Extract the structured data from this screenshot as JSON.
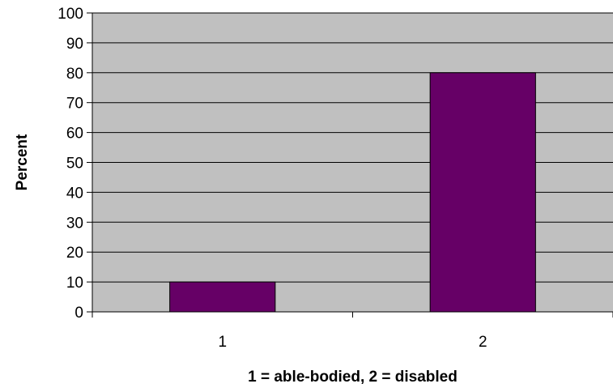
{
  "chart_data": {
    "type": "bar",
    "categories": [
      "1",
      "2"
    ],
    "values": [
      10,
      80
    ],
    "xlabel": "1 = able-bodied, 2 = disabled",
    "ylabel": "Percent",
    "ylim": [
      0,
      100
    ],
    "yticks": [
      "0",
      "10",
      "20",
      "30",
      "40",
      "50",
      "60",
      "70",
      "80",
      "90",
      "100"
    ],
    "grid": true,
    "legend": "none",
    "colors": {
      "plot_background": "#c0c0c0",
      "bar_fill": "#660066",
      "bar_edge": "#000000",
      "gridline": "#000000"
    }
  }
}
